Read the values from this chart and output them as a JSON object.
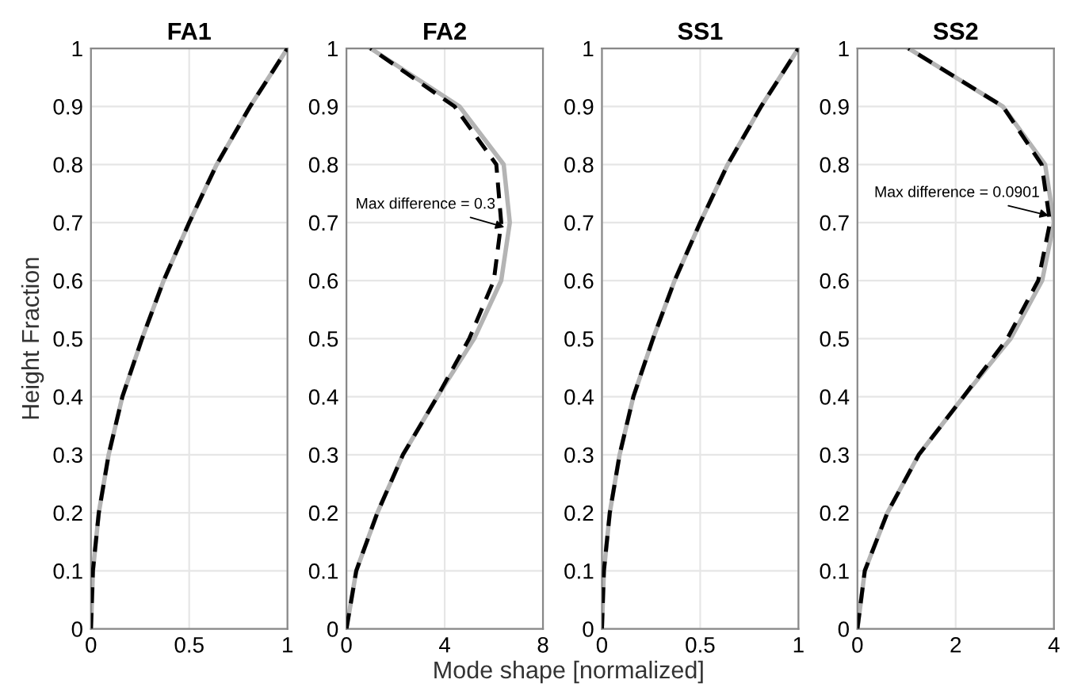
{
  "chart_data": [
    {
      "type": "line",
      "title": "FA1",
      "ylabel": "Height Fraction",
      "xlim": [
        0,
        1
      ],
      "xticks": [
        0,
        0.5,
        1
      ],
      "ylim": [
        0,
        1
      ],
      "yticks": [
        0,
        0.1,
        0.2,
        0.3,
        0.4,
        0.5,
        0.6,
        0.7,
        0.8,
        0.9,
        1
      ],
      "grid": true,
      "marker": "none",
      "series": [
        {
          "color": "#b4b4b4",
          "line_style": "solid",
          "x": [
            0,
            0.01,
            0.04,
            0.09,
            0.16,
            0.26,
            0.37,
            0.5,
            0.64,
            0.81,
            1
          ],
          "values": [
            0,
            0.1,
            0.2,
            0.3,
            0.4,
            0.5,
            0.6,
            0.7,
            0.8,
            0.9,
            1
          ]
        },
        {
          "color": "#000000",
          "line_style": "dashed",
          "x": [
            0,
            0.01,
            0.04,
            0.09,
            0.16,
            0.26,
            0.37,
            0.5,
            0.64,
            0.81,
            1
          ],
          "values": [
            0,
            0.1,
            0.2,
            0.3,
            0.4,
            0.5,
            0.6,
            0.7,
            0.8,
            0.9,
            1
          ]
        }
      ]
    },
    {
      "type": "line",
      "title": "FA2",
      "xlabel": "Mode shape [normalized]",
      "xlim": [
        0,
        8
      ],
      "xticks": [
        0,
        4,
        8
      ],
      "ylim": [
        0,
        1
      ],
      "yticks": [
        0,
        0.1,
        0.2,
        0.3,
        0.4,
        0.5,
        0.6,
        0.7,
        0.8,
        0.9,
        1
      ],
      "grid": true,
      "marker": "none",
      "annotations": [
        {
          "text": "Max difference = 0.3",
          "x": 6.6,
          "y": 0.69
        }
      ],
      "series": [
        {
          "color": "#b4b4b4",
          "line_style": "solid",
          "x": [
            0,
            0.4,
            1.26,
            2.3,
            3.7,
            5.2,
            6.3,
            6.65,
            6.4,
            4.6,
            0.98
          ],
          "values": [
            0,
            0.1,
            0.2,
            0.3,
            0.4,
            0.5,
            0.6,
            0.7,
            0.8,
            0.9,
            1
          ]
        },
        {
          "color": "#000000",
          "line_style": "dashed",
          "x": [
            0,
            0.4,
            1.26,
            2.3,
            3.7,
            5.0,
            6.0,
            6.3,
            6.1,
            4.4,
            0.98
          ],
          "values": [
            0,
            0.1,
            0.2,
            0.3,
            0.4,
            0.5,
            0.6,
            0.7,
            0.8,
            0.9,
            1
          ]
        }
      ]
    },
    {
      "type": "line",
      "title": "SS1",
      "xlim": [
        0,
        1
      ],
      "xticks": [
        0,
        0.5,
        1
      ],
      "ylim": [
        0,
        1
      ],
      "yticks": [
        0,
        0.1,
        0.2,
        0.3,
        0.4,
        0.5,
        0.6,
        0.7,
        0.8,
        0.9,
        1
      ],
      "grid": true,
      "marker": "none",
      "series": [
        {
          "color": "#b4b4b4",
          "line_style": "solid",
          "x": [
            0,
            0.01,
            0.04,
            0.09,
            0.16,
            0.26,
            0.37,
            0.5,
            0.64,
            0.81,
            1
          ],
          "values": [
            0,
            0.1,
            0.2,
            0.3,
            0.4,
            0.5,
            0.6,
            0.7,
            0.8,
            0.9,
            1
          ]
        },
        {
          "color": "#000000",
          "line_style": "dashed",
          "x": [
            0,
            0.01,
            0.04,
            0.09,
            0.16,
            0.26,
            0.37,
            0.5,
            0.64,
            0.81,
            1
          ],
          "values": [
            0,
            0.1,
            0.2,
            0.3,
            0.4,
            0.5,
            0.6,
            0.7,
            0.8,
            0.9,
            1
          ]
        }
      ]
    },
    {
      "type": "line",
      "title": "SS2",
      "xlim": [
        0,
        4
      ],
      "xticks": [
        0,
        2,
        4
      ],
      "ylim": [
        0,
        1
      ],
      "yticks": [
        0,
        0.1,
        0.2,
        0.3,
        0.4,
        0.5,
        0.6,
        0.7,
        0.8,
        0.9,
        1
      ],
      "grid": true,
      "marker": "none",
      "annotations": [
        {
          "text": "Max difference = 0.0901",
          "x": 3.98,
          "y": 0.71
        }
      ],
      "series": [
        {
          "color": "#b4b4b4",
          "line_style": "solid",
          "x": [
            0,
            0.15,
            0.61,
            1.25,
            2.16,
            3.12,
            3.76,
            4.0,
            3.82,
            2.96,
            1.04
          ],
          "values": [
            0,
            0.1,
            0.2,
            0.3,
            0.4,
            0.5,
            0.6,
            0.7,
            0.8,
            0.9,
            1
          ]
        },
        {
          "color": "#000000",
          "line_style": "dashed",
          "x": [
            0,
            0.15,
            0.61,
            1.25,
            2.16,
            3.05,
            3.68,
            3.92,
            3.75,
            2.96,
            1.04
          ],
          "values": [
            0,
            0.1,
            0.2,
            0.3,
            0.4,
            0.5,
            0.6,
            0.7,
            0.8,
            0.9,
            1
          ]
        }
      ]
    }
  ]
}
